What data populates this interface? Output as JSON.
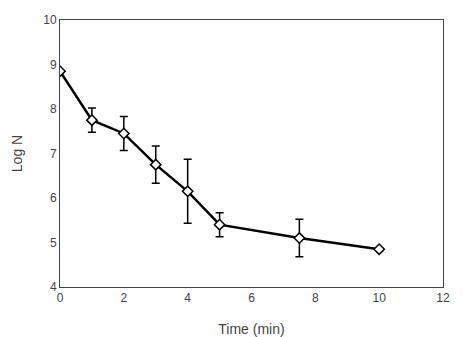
{
  "chart_data": {
    "type": "line",
    "x": [
      0,
      1,
      2,
      3,
      4,
      5,
      7.5,
      10
    ],
    "values": [
      8.85,
      7.75,
      7.45,
      6.75,
      6.15,
      5.4,
      5.1,
      4.85
    ],
    "yerr": [
      0.0,
      0.27,
      0.38,
      0.42,
      0.72,
      0.27,
      0.42,
      0.0
    ],
    "xlabel": "Time (min)",
    "ylabel": "Log N",
    "xlim": [
      0,
      12
    ],
    "ylim": [
      4,
      10
    ],
    "xticks": [
      0,
      2,
      4,
      6,
      8,
      10,
      12
    ],
    "yticks": [
      4,
      5,
      6,
      7,
      8,
      9,
      10
    ],
    "color": "#000000",
    "marker": "diamond",
    "grid": false
  }
}
